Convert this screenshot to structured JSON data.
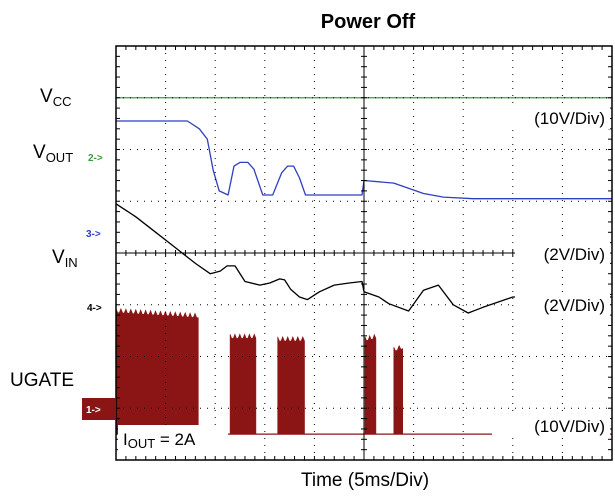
{
  "chart_data": {
    "type": "line",
    "title": "Power Off",
    "xlabel": "Time (5ms/Div)",
    "xlim": [
      0,
      50
    ],
    "grid": true,
    "divisions": {
      "x": 10,
      "y": 8
    },
    "channels": [
      {
        "name": "VCC",
        "label": {
          "main": "V",
          "sub": "CC"
        },
        "marker": "",
        "scale": "(10V/Div)",
        "color": "#3d9a3d",
        "level_div": 7.0
      },
      {
        "name": "VOUT",
        "label": {
          "main": "V",
          "sub": "OUT"
        },
        "marker": "2->",
        "scale": "",
        "color": "#2f3fc0",
        "reference_div": 6.0,
        "x": [
          0,
          7.2,
          8.4,
          9.2,
          9.8,
          10.4,
          11.3,
          11.9,
          12.5,
          13.3,
          13.9,
          14.8,
          15.8,
          16.7,
          17.3,
          17.9,
          18.5,
          19.1,
          19.7,
          21.0,
          22.0,
          23.4,
          24.8,
          25.0,
          28.0,
          31.0,
          33.0,
          36.0,
          40.0,
          50.0
        ],
        "y": [
          6.55,
          6.55,
          6.4,
          6.2,
          5.6,
          5.2,
          5.12,
          5.68,
          5.75,
          5.75,
          5.62,
          5.12,
          5.12,
          5.55,
          5.68,
          5.68,
          5.45,
          5.12,
          5.12,
          5.12,
          5.12,
          5.12,
          5.12,
          5.4,
          5.35,
          5.15,
          5.08,
          5.05,
          5.05,
          5.05
        ]
      },
      {
        "name": "VIN",
        "label": {
          "main": "V",
          "sub": "IN"
        },
        "marker": "3->",
        "scale": "(2V/Div)",
        "color": "#000000",
        "reference_div": 5.0,
        "x": [
          0,
          2.0,
          4.0,
          6.0,
          8.0,
          9.5,
          10.5,
          11.2,
          12.0,
          13.0,
          14.5,
          15.5,
          16.5,
          17.0,
          17.6,
          18.5,
          19.3,
          20.5,
          22.0,
          23.5,
          24.8,
          25.0,
          26.5,
          27.5,
          29.5,
          31.0,
          32.5,
          34.0,
          35.5,
          37.0,
          40.0,
          50.0
        ],
        "y": [
          4.95,
          4.7,
          4.4,
          4.1,
          3.8,
          3.6,
          3.65,
          3.75,
          3.75,
          3.45,
          3.38,
          3.42,
          3.5,
          3.48,
          3.3,
          3.15,
          3.1,
          3.25,
          3.38,
          3.42,
          3.45,
          3.25,
          3.15,
          3.02,
          2.88,
          3.28,
          3.38,
          3.0,
          2.84,
          2.95,
          3.15,
          3.15
        ]
      },
      {
        "name": "UGATE",
        "label": {
          "main": "UGATE",
          "sub": ""
        },
        "marker": "1->",
        "scale": "(10V/Div)",
        "color": "#8b1414",
        "reference_div": 0.5,
        "switching": true,
        "x": [
          0,
          8.3,
          8.4,
          11.4,
          11.5,
          14.1,
          14.2,
          16.2,
          16.3,
          19.0,
          19.1,
          25.0,
          25.1,
          26.2,
          26.3,
          27.9,
          28.0,
          28.9,
          29.0,
          50.0
        ],
        "y": [
          2.85,
          1.8,
          0.5,
          0.5,
          2.3,
          2.35,
          0.5,
          0.5,
          2.3,
          2.3,
          0.5,
          0.5,
          2.3,
          2.35,
          0.5,
          0.5,
          2.1,
          2.15,
          0.5,
          0.5
        ],
        "envelope_top": {
          "x": [
            0,
            8.3,
            11.5,
            14.1,
            16.3,
            19.0,
            25.1,
            26.2,
            28.0,
            28.9,
            29.0,
            50.0
          ],
          "y": [
            2.85,
            2.75,
            2.35,
            2.35,
            2.3,
            2.3,
            2.3,
            2.35,
            2.1,
            2.15,
            2.05,
            2.2
          ]
        }
      }
    ],
    "annotations": [
      {
        "main": "I",
        "sub": "OUT",
        "rest": " = 2A"
      }
    ]
  }
}
